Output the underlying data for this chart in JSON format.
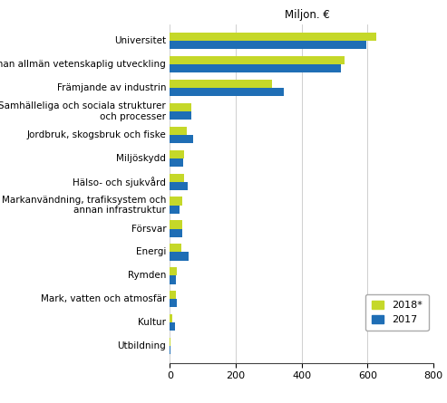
{
  "title": "Miljon. €",
  "categories": [
    "Utbildning",
    "Kultur",
    "Mark, vatten och atmosfär",
    "Rymden",
    "Energi",
    "Försvar",
    "Markanvändning, trafiksystem och\nannan infrastruktur",
    "Hälso- och sjukvård",
    "Miljöskydd",
    "Jordbruk, skogsbruk och fiske",
    "Samhälleliga och sociala strukturer\noch processer",
    "Främjande av industrin",
    "Annan allmän vetenskaplig utveckling",
    "Universitet"
  ],
  "values_2018": [
    1,
    8,
    18,
    20,
    35,
    38,
    38,
    42,
    42,
    52,
    65,
    310,
    530,
    625
  ],
  "values_2017": [
    1,
    15,
    22,
    18,
    58,
    38,
    28,
    55,
    40,
    70,
    65,
    345,
    520,
    595
  ],
  "color_2018": "#c5d829",
  "color_2017": "#1f6eb5",
  "legend_2018": "2018*",
  "legend_2017": "2017",
  "xlim": [
    0,
    800
  ],
  "xticks": [
    0,
    200,
    400,
    600,
    800
  ],
  "background_color": "#ffffff",
  "bar_height": 0.35,
  "title_fontsize": 8.5,
  "tick_fontsize": 7.5,
  "xtick_fontsize": 8
}
